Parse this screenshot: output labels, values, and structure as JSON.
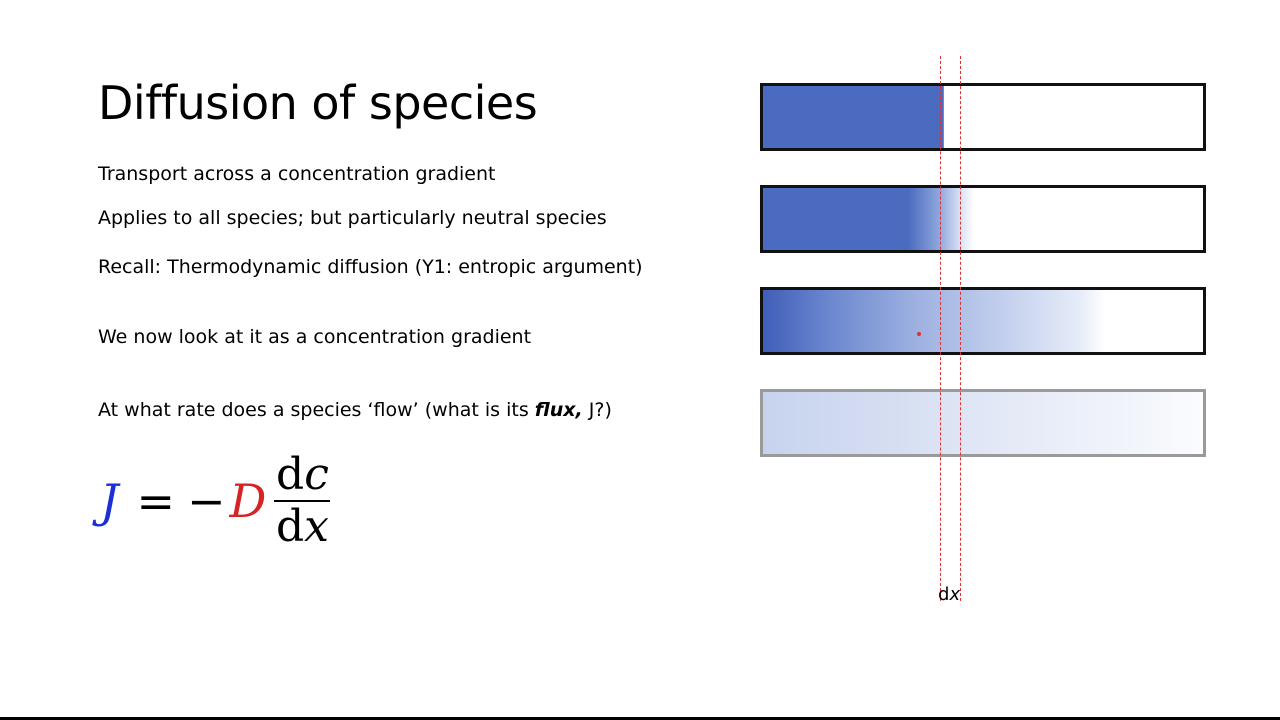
{
  "slide": {
    "title": "Diffusion of species",
    "bullets": [
      "Transport across a concentration gradient",
      "Applies to all species; but particularly neutral species",
      "Recall: Thermodynamic diffusion (Y1: entropic argument)",
      "We now look at it as a concentration gradient"
    ],
    "question": {
      "prefix": "At what rate does a species ‘flow’ (what is its ",
      "emphasis": "flux,",
      "suffix": " J?)"
    },
    "equation": {
      "lhs": "J",
      "equals": "=",
      "minus": "−",
      "coefficient": "D",
      "numerator_d": "d",
      "numerator_var": "c",
      "denominator_d": "d",
      "denominator_var": "x"
    }
  },
  "diagram": {
    "label_d": "d",
    "label_var": "x",
    "colors": {
      "concentration": "#4a6bbf",
      "marker_lines": "#e03030",
      "J_color": "#1a2fd6",
      "D_color": "#d42424"
    }
  }
}
